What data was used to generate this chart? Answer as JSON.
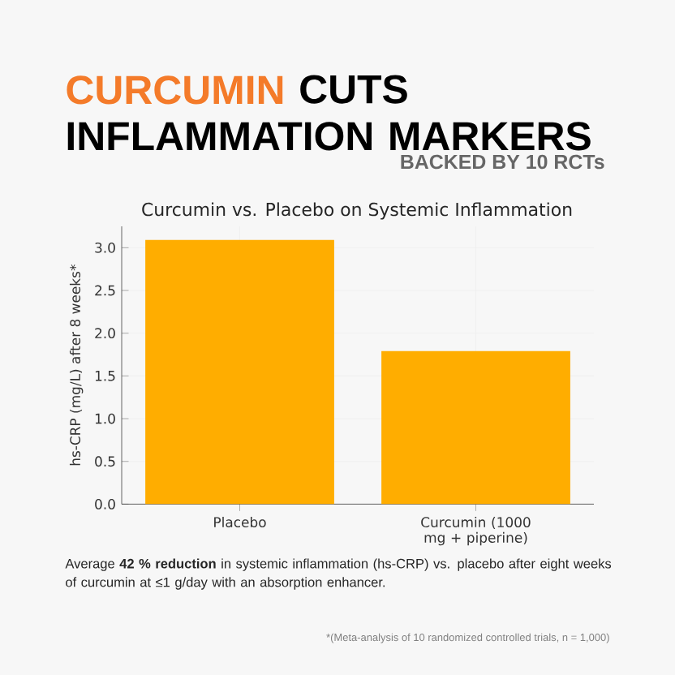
{
  "chart_data": {
    "type": "bar",
    "title": "Curcumin vs. Placebo on Systemic Inflammation",
    "annotations": [
      "CURCUMIN",
      "CUTS INFLAMMATION MARKERS",
      "BACKED BY 10 RCTs",
      "Average **42 % reduction** in systemic inflammation (hs-CRP) vs. placebo after eight weeks of curcumin at ≤1 g/day with an absorption enhancer.",
      "*(Meta-analysis of 10 randomized controlled trials, n = 1,000)"
    ],
    "categories": [
      "Placebo",
      "Curcumin (1000 mg + piperine)"
    ],
    "values": [
      3.09,
      1.79
    ],
    "color": "#ffad00",
    "ylabel": "hs-CRP (mg/L) after 8 weeks*",
    "ylim": [
      0,
      3.25
    ],
    "yticks": [
      {
        "value": 0,
        "label": "0.0"
      },
      {
        "value": 0.5,
        "label": "0.5"
      },
      {
        "value": 1,
        "label": "1.0"
      },
      {
        "value": 1.5,
        "label": "1.5"
      },
      {
        "value": 2,
        "label": "2.0"
      },
      {
        "value": 2.5,
        "label": "2.5"
      },
      {
        "value": 3,
        "label": "3.0"
      }
    ],
    "grid": true
  }
}
